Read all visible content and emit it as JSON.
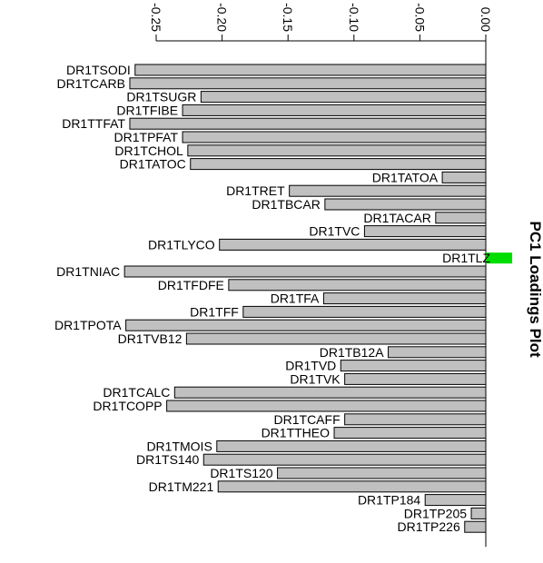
{
  "chart_data": {
    "type": "bar",
    "orientation": "horizontal",
    "title": "PC1 Loadings Plot",
    "xlabel": "",
    "ylabel": "",
    "xlim": [
      -0.26,
      0.02
    ],
    "x_ticks": [
      -0.25,
      -0.2,
      -0.15,
      -0.1,
      -0.05,
      0.0
    ],
    "x_tick_labels": [
      "-0.25",
      "-0.20",
      "-0.15",
      "-0.10",
      "-0.05",
      "0.00"
    ],
    "grid": false,
    "legend": "none",
    "colors": {
      "negative": "#c0c0c0",
      "positive": "#00dd00",
      "outline": "#000000"
    },
    "categories": [
      "DR1TSODI",
      "DR1TCARB",
      "DR1TSUGR",
      "DR1TFIBE",
      "DR1TTFAT",
      "DR1TPFAT",
      "DR1TCHOL",
      "DR1TATOC",
      "DR1TATOA",
      "DR1TRET",
      "DR1TBCAR",
      "DR1TACAR",
      "DR1TVC",
      "DR1TLYCO",
      "DR1TLZ",
      "DR1TNIAC",
      "DR1TFDFE",
      "DR1TFA",
      "DR1TFF",
      "DR1TPOTA",
      "DR1TVB12",
      "DR1TB12A",
      "DR1TVD",
      "DR1TVK",
      "DR1TCALC",
      "DR1TCOPP",
      "DR1TCAFF",
      "DR1TTHEO",
      "DR1TMOIS",
      "DR1TS140",
      "DR1TS120",
      "DR1TM221",
      "DR1TP184",
      "DR1TP205",
      "DR1TP226"
    ],
    "values": [
      -0.266,
      -0.27,
      -0.216,
      -0.23,
      -0.27,
      -0.23,
      -0.226,
      -0.224,
      -0.033,
      -0.149,
      -0.122,
      -0.038,
      -0.092,
      -0.202,
      0.02,
      -0.274,
      -0.195,
      -0.123,
      -0.184,
      -0.273,
      -0.227,
      -0.074,
      -0.11,
      -0.107,
      -0.236,
      -0.242,
      -0.107,
      -0.115,
      -0.204,
      -0.214,
      -0.158,
      -0.203,
      -0.046,
      -0.011,
      -0.016
    ]
  }
}
